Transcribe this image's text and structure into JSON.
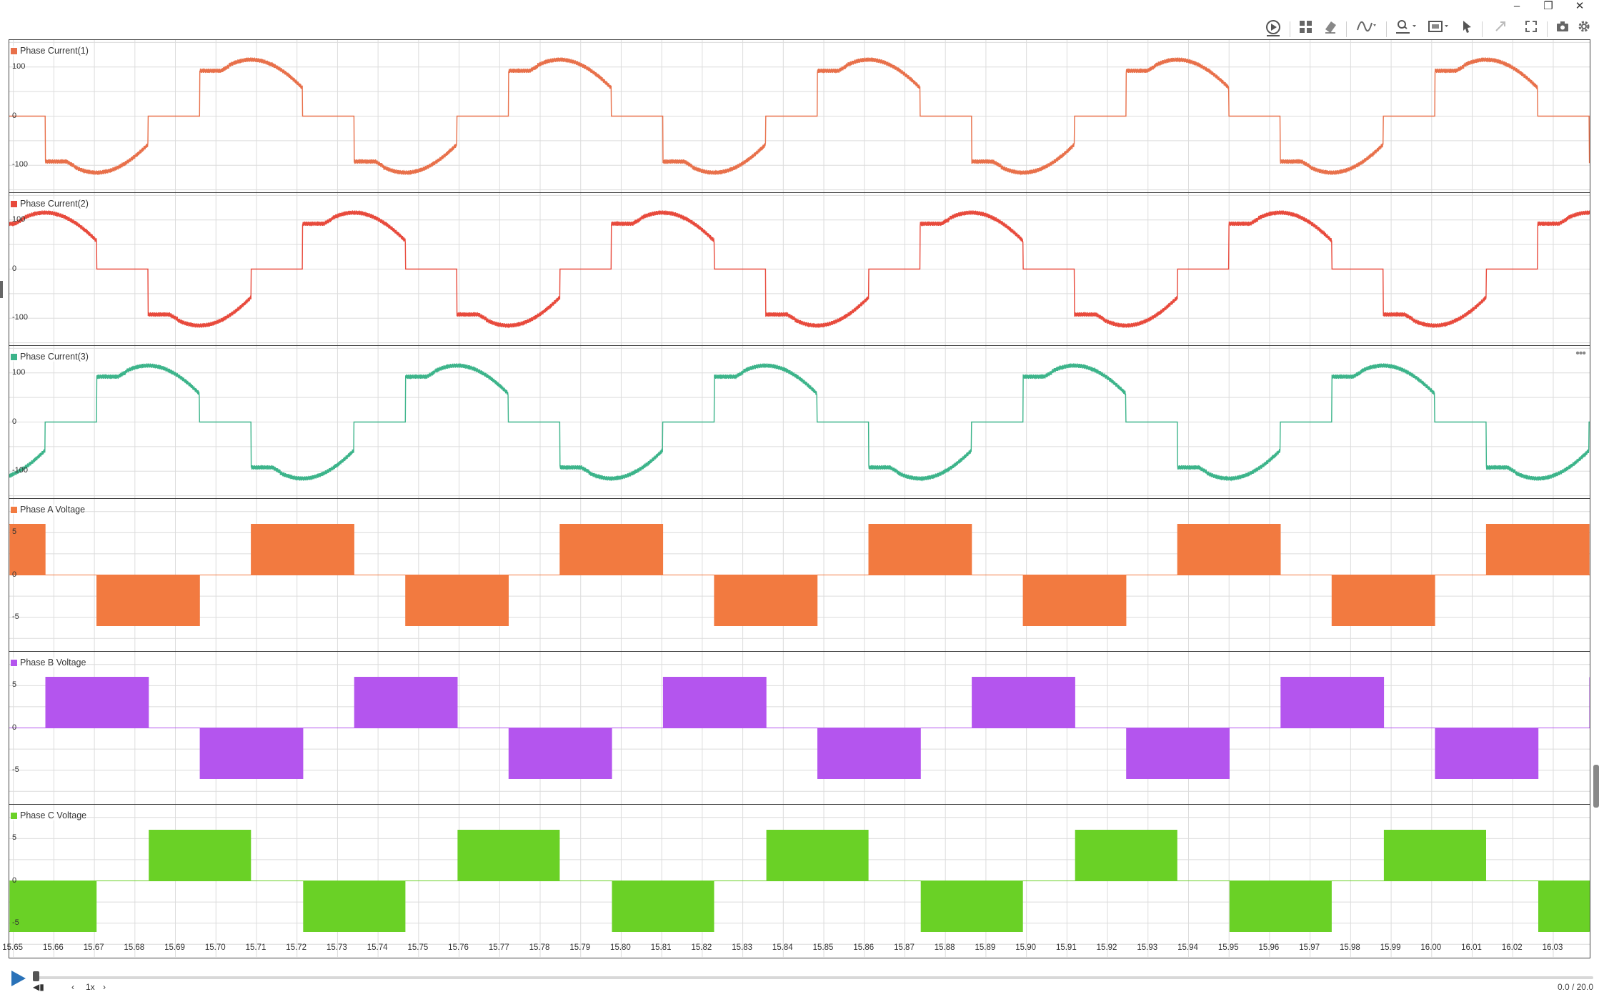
{
  "window": {
    "minimize_glyph": "–",
    "restore_glyph": "❐",
    "close_glyph": "✕"
  },
  "toolbar": {
    "icons": [
      "play-circle-icon",
      "layout-grid-icon",
      "eraser-icon",
      "signal-icon",
      "zoom-icon",
      "fit-icon",
      "cursor-icon",
      "expand-icon",
      "fullscreen-icon",
      "camera-icon",
      "gear-icon"
    ]
  },
  "panels": [
    {
      "name": "Phase Current(1)",
      "color": "#e8704a",
      "kind": "current",
      "phase": 0,
      "yticks": [
        "100",
        "0",
        "-100"
      ]
    },
    {
      "name": "Phase Current(2)",
      "color": "#e84a3c",
      "kind": "current",
      "phase": -2.0944,
      "yticks": [
        "100",
        "0",
        "-100"
      ]
    },
    {
      "name": "Phase Current(3)",
      "color": "#3cb48a",
      "kind": "current",
      "phase": 2.0944,
      "yticks": [
        "100",
        "0",
        "-100"
      ],
      "more": "•••"
    },
    {
      "name": "Phase A Voltage",
      "color": "#f27a40",
      "kind": "voltage",
      "phase": 0,
      "yticks": [
        "5",
        "0",
        "-5"
      ]
    },
    {
      "name": "Phase B Voltage",
      "color": "#b455ee",
      "kind": "voltage",
      "phase": -2.0944,
      "yticks": [
        "5",
        "0",
        "-5"
      ]
    },
    {
      "name": "Phase C Voltage",
      "color": "#6ad126",
      "kind": "voltage",
      "phase": 2.0944,
      "yticks": [
        "5",
        "0",
        "-5"
      ]
    }
  ],
  "chart_data": {
    "type": "line",
    "xlim": [
      15.649,
      16.039
    ],
    "x_ticks": [
      "15.65",
      "15.66",
      "15.67",
      "15.68",
      "15.69",
      "15.70",
      "15.71",
      "15.72",
      "15.73",
      "15.74",
      "15.75",
      "15.76",
      "15.77",
      "15.78",
      "15.79",
      "15.80",
      "15.81",
      "15.82",
      "15.83",
      "15.84",
      "15.85",
      "15.86",
      "15.87",
      "15.88",
      "15.89",
      "15.90",
      "15.91",
      "15.92",
      "15.93",
      "15.94",
      "15.95",
      "15.96",
      "15.97",
      "15.98",
      "15.99",
      "16.00",
      "16.01",
      "16.02",
      "16.03"
    ],
    "x_tick_values": [
      15.65,
      15.66,
      15.67,
      15.68,
      15.69,
      15.7,
      15.71,
      15.72,
      15.73,
      15.74,
      15.75,
      15.76,
      15.77,
      15.78,
      15.79,
      15.8,
      15.81,
      15.82,
      15.83,
      15.84,
      15.85,
      15.86,
      15.87,
      15.88,
      15.89,
      15.9,
      15.91,
      15.92,
      15.93,
      15.94,
      15.95,
      15.96,
      15.97,
      15.98,
      15.99,
      16.0,
      16.01,
      16.02,
      16.03
    ],
    "period": 0.0762,
    "grid": true,
    "series": [
      {
        "name": "Phase Current(1)",
        "ylim": [
          -155,
          155
        ],
        "peak": 115,
        "phase_ref_x": 15.6515
      },
      {
        "name": "Phase Current(2)",
        "ylim": [
          -155,
          155
        ],
        "peak": 115,
        "phase_ref_x": 15.6515
      },
      {
        "name": "Phase Current(3)",
        "ylim": [
          -155,
          155
        ],
        "peak": 115,
        "phase_ref_x": 15.6515
      },
      {
        "name": "Phase A Voltage",
        "ylim": [
          -9,
          9
        ],
        "high": 6,
        "low": -6
      },
      {
        "name": "Phase B Voltage",
        "ylim": [
          -9,
          9
        ],
        "high": 6,
        "low": -6
      },
      {
        "name": "Phase C Voltage",
        "ylim": [
          -9,
          9
        ],
        "high": 6,
        "low": -6
      }
    ]
  },
  "playback": {
    "speed": "1x",
    "prev_glyph": "‹",
    "next_glyph": "›",
    "time": "0.0 / 20.0"
  }
}
